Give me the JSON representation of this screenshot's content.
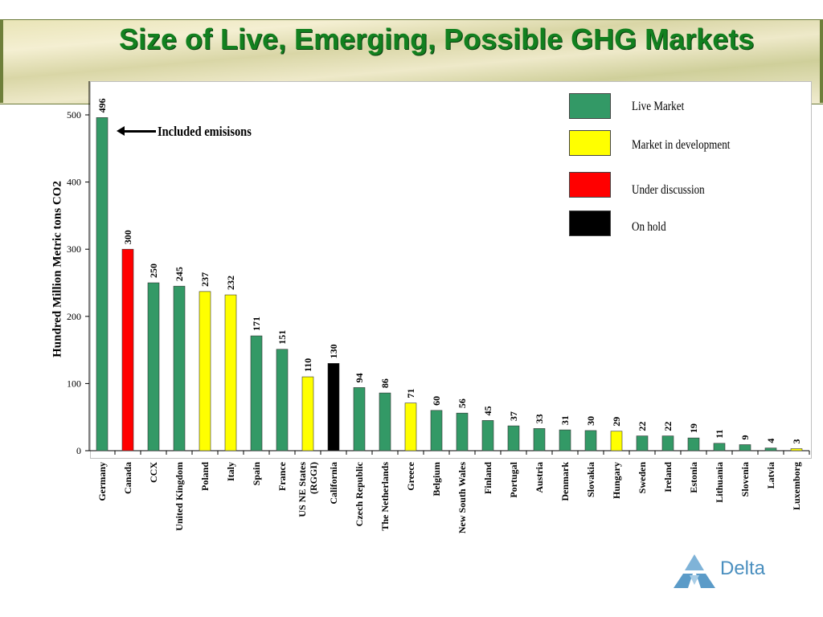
{
  "title": "Size of Live, Emerging, Possible GHG Markets",
  "logo_text": "Delta",
  "annotation": "Included emisisons",
  "colors": {
    "live": "#339966",
    "development": "#ffff00",
    "discussion": "#ff0000",
    "hold": "#000000",
    "title": "#12801f"
  },
  "legend": [
    {
      "label": "Live Market",
      "status": "live"
    },
    {
      "label": "Market in development",
      "status": "development"
    },
    {
      "label": "Under discussion",
      "status": "discussion"
    },
    {
      "label": "On hold",
      "status": "hold"
    }
  ],
  "chart_data": {
    "type": "bar",
    "title": "Size of Live, Emerging, Possible GHG Markets",
    "xlabel": "",
    "ylabel": "Hundred Million Metric tons CO2",
    "ylim": [
      0,
      500
    ],
    "yticks": [
      0,
      100,
      200,
      300,
      400,
      500
    ],
    "grid": false,
    "legend_position": "top-right",
    "categories": [
      "Germany",
      "Canada",
      "CCX",
      "United Kingdom",
      "Poland",
      "Italy",
      "Spain",
      "France",
      "US NE States (RGGI)",
      "California",
      "Czech Republic",
      "The Netherlands",
      "Greece",
      "Belgium",
      "New South Wales",
      "Finland",
      "Portugal",
      "Austria",
      "Denmark",
      "Slovakia",
      "Hungary",
      "Sweden",
      "Ireland",
      "Estonia",
      "Lithuania",
      "Slovenia",
      "Latvia",
      "Luxemborg"
    ],
    "category_lines": [
      [
        "Germany"
      ],
      [
        "Canada"
      ],
      [
        "CCX"
      ],
      [
        "United Kingdom"
      ],
      [
        "Poland"
      ],
      [
        "Italy"
      ],
      [
        "Spain"
      ],
      [
        "France"
      ],
      [
        "US NE States",
        "(RGGI)"
      ],
      [
        "California"
      ],
      [
        "Czech Republic"
      ],
      [
        "The Netherlands"
      ],
      [
        "Greece"
      ],
      [
        "Belgium"
      ],
      [
        "New South Wales"
      ],
      [
        "Finland"
      ],
      [
        "Portugal"
      ],
      [
        "Austria"
      ],
      [
        "Denmark"
      ],
      [
        "Slovakia"
      ],
      [
        "Hungary"
      ],
      [
        "Sweden"
      ],
      [
        "Ireland"
      ],
      [
        "Estonia"
      ],
      [
        "Lithuania"
      ],
      [
        "Slovenia"
      ],
      [
        "Latvia"
      ],
      [
        "Luxemborg"
      ]
    ],
    "values": [
      496,
      300,
      250,
      245,
      237,
      232,
      171,
      151,
      110,
      130,
      94,
      86,
      71,
      60,
      56,
      45,
      37,
      33,
      31,
      30,
      29,
      22,
      22,
      19,
      11,
      9,
      4,
      3
    ],
    "status": [
      "live",
      "discussion",
      "live",
      "live",
      "development",
      "development",
      "live",
      "live",
      "development",
      "hold",
      "live",
      "live",
      "development",
      "live",
      "live",
      "live",
      "live",
      "live",
      "live",
      "live",
      "development",
      "live",
      "live",
      "live",
      "live",
      "live",
      "live",
      "development"
    ]
  }
}
